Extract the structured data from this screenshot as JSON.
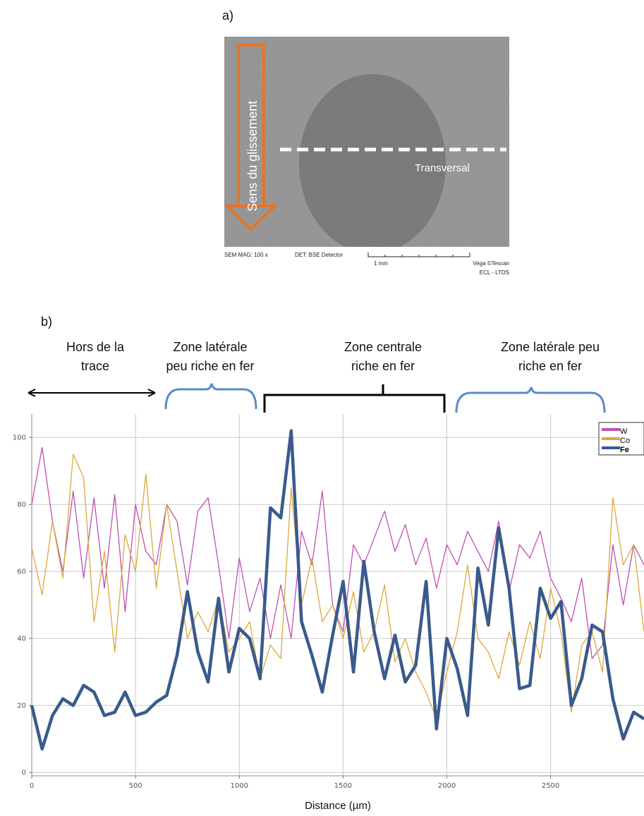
{
  "panel_a": {
    "label": "a)",
    "arrow_text": "Sens du glissement",
    "line_text": "Transversal",
    "caption": {
      "mag": "SEM MAG: 100 x",
      "det": "DET: BSE Detector",
      "scale": "1 mm",
      "vendor": "Vega ©Tescan",
      "lab": "ECL - LTDS"
    }
  },
  "panel_b": {
    "label": "b)",
    "zones": [
      {
        "lines": [
          "Hors de la",
          "trace"
        ]
      },
      {
        "lines": [
          "Zone latérale",
          "peu riche en fer"
        ]
      },
      {
        "lines": [
          "Zone centrale",
          "riche en fer"
        ]
      },
      {
        "lines": [
          "Zone latérale peu",
          "riche en fer"
        ]
      }
    ]
  },
  "chart_data": {
    "type": "line",
    "xlabel": "Distance (µm)",
    "x": [
      0,
      50,
      100,
      150,
      200,
      250,
      300,
      350,
      400,
      450,
      500,
      550,
      600,
      650,
      700,
      750,
      800,
      850,
      900,
      950,
      1000,
      1050,
      1100,
      1150,
      1200,
      1250,
      1300,
      1350,
      1400,
      1450,
      1500,
      1550,
      1600,
      1650,
      1700,
      1750,
      1800,
      1850,
      1900,
      1950,
      2000,
      2050,
      2100,
      2150,
      2200,
      2250,
      2300,
      2350,
      2400,
      2450,
      2500,
      2550,
      2600,
      2650,
      2700,
      2750,
      2800,
      2850,
      2900,
      2950
    ],
    "series": [
      {
        "name": "W",
        "color": "#c24fb3",
        "line_width": 1.3,
        "values": [
          80,
          97,
          75,
          60,
          84,
          58,
          82,
          55,
          83,
          48,
          80,
          66,
          62,
          80,
          75,
          56,
          78,
          82,
          62,
          40,
          64,
          48,
          58,
          40,
          56,
          40,
          72,
          62,
          84,
          50,
          42,
          68,
          62,
          70,
          78,
          66,
          74,
          62,
          70,
          55,
          68,
          62,
          72,
          66,
          60,
          75,
          54,
          68,
          64,
          72,
          58,
          52,
          45,
          58,
          34,
          38,
          68,
          50,
          68,
          62
        ]
      },
      {
        "name": "Co",
        "color": "#d9a93c",
        "line_width": 1.3,
        "values": [
          67,
          53,
          75,
          58,
          95,
          88,
          45,
          66,
          36,
          71,
          60,
          89,
          55,
          80,
          60,
          40,
          48,
          42,
          52,
          36,
          40,
          45,
          28,
          38,
          34,
          85,
          50,
          64,
          45,
          50,
          40,
          54,
          36,
          42,
          56,
          33,
          40,
          30,
          24,
          16,
          30,
          42,
          62,
          40,
          36,
          28,
          42,
          32,
          45,
          34,
          55,
          42,
          18,
          38,
          42,
          30,
          82,
          62,
          68,
          42
        ]
      },
      {
        "name": "Fe",
        "color": "#3a5a8c",
        "line_width": 4.5,
        "bold": true,
        "values": [
          20,
          7,
          17,
          22,
          20,
          26,
          24,
          17,
          18,
          24,
          17,
          18,
          21,
          23,
          35,
          54,
          36,
          27,
          52,
          30,
          43,
          40,
          28,
          79,
          76,
          102,
          45,
          35,
          24,
          41,
          57,
          30,
          63,
          42,
          28,
          41,
          27,
          32,
          57,
          13,
          40,
          31,
          17,
          61,
          44,
          73,
          55,
          25,
          26,
          55,
          46,
          51,
          20,
          28,
          44,
          42,
          22,
          10,
          18,
          16
        ]
      }
    ],
    "xlim": [
      0,
      2950
    ],
    "xticks": [
      0,
      500,
      1000,
      1500,
      2000,
      2500
    ],
    "ylim": [
      -1,
      107
    ],
    "yticks": [
      0,
      20,
      40,
      60,
      80,
      100
    ],
    "grid": true,
    "legend": "upper right"
  }
}
